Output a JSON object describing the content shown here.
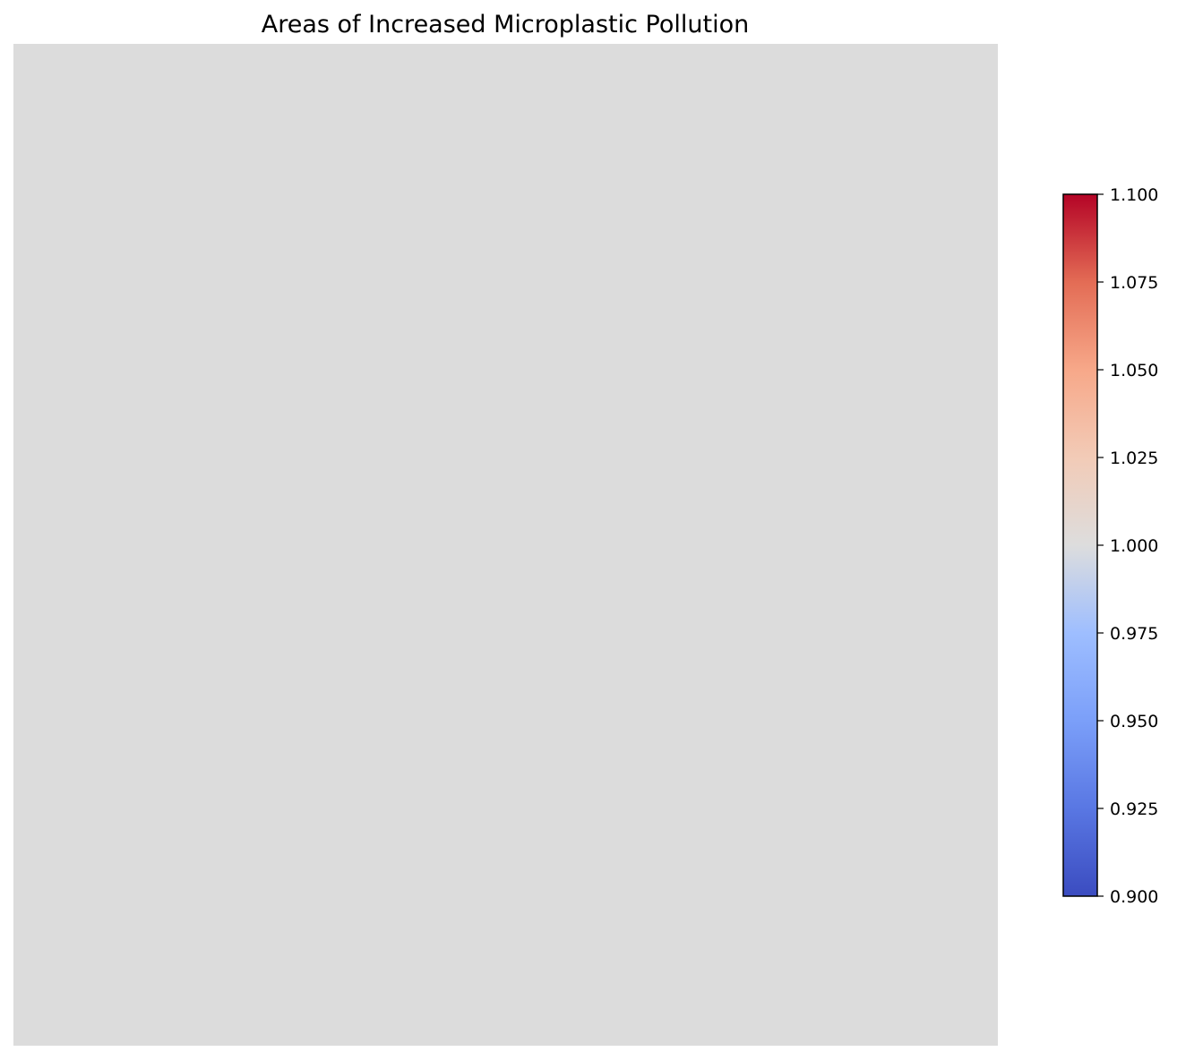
{
  "chart_data": {
    "type": "heatmap",
    "title": "Areas of Increased Microplastic Pollution",
    "xlabel": "",
    "ylabel": "",
    "grid": false,
    "axes_visible": false,
    "values": [
      [
        1.0
      ]
    ],
    "fill_color": "#dcdcdc",
    "colorbar": {
      "colormap": "coolwarm",
      "min": 0.9,
      "max": 1.1,
      "ticks": [
        0.9,
        0.925,
        0.95,
        0.975,
        1.0,
        1.025,
        1.05,
        1.075,
        1.1
      ],
      "tick_labels": [
        "0.900",
        "0.925",
        "0.950",
        "0.975",
        "1.000",
        "1.025",
        "1.050",
        "1.075",
        "1.100"
      ],
      "position": "right",
      "colors": {
        "low": "#3b4cc0",
        "mid": "#dddddd",
        "high": "#b40426"
      }
    }
  }
}
